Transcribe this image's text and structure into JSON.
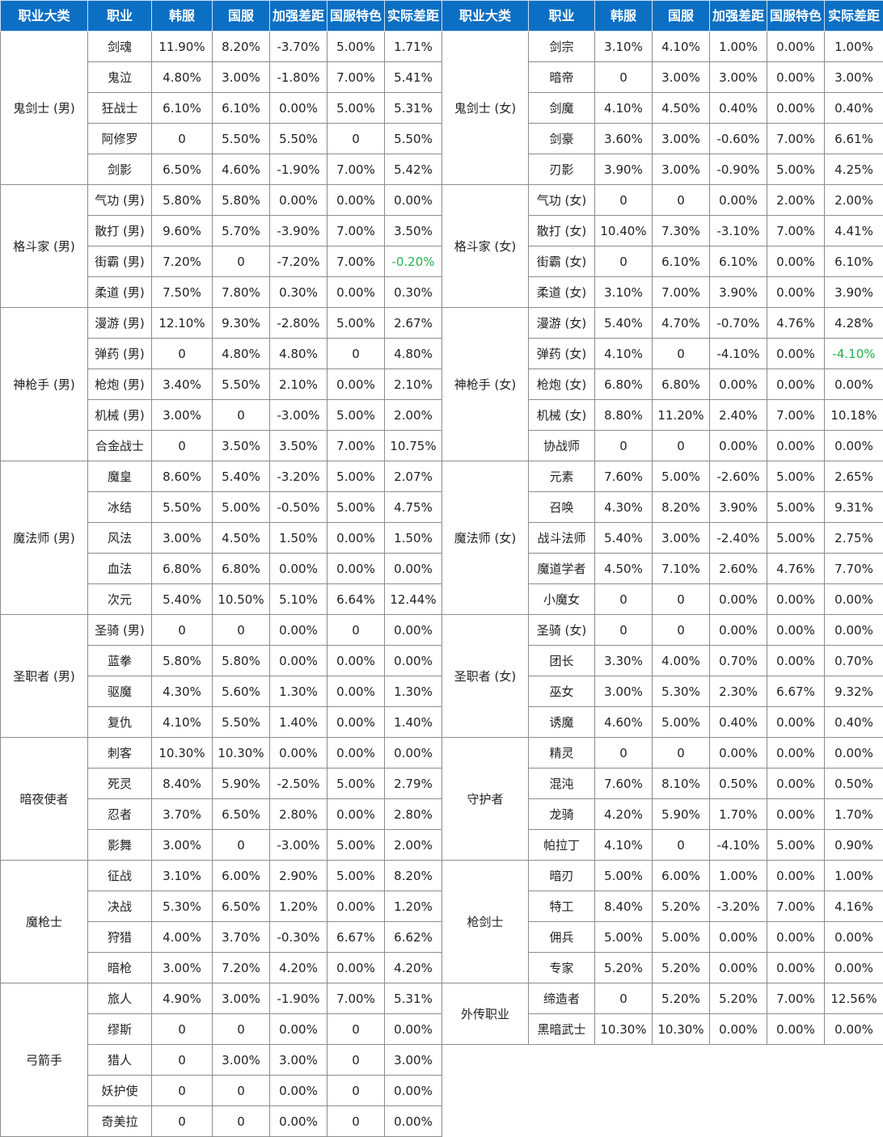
{
  "header": [
    "职业大类",
    "职业",
    "韩服",
    "国服",
    "加强差距",
    "国服特色",
    "实际差距"
  ],
  "left": [
    {
      "name": "鬼剑士 (男)",
      "rows": [
        [
          "剑魂",
          "11.90%",
          "8.20%",
          "-3.70%",
          "5.00%",
          "1.71%"
        ],
        [
          "鬼泣",
          "4.80%",
          "3.00%",
          "-1.80%",
          "7.00%",
          "5.41%"
        ],
        [
          "狂战士",
          "6.10%",
          "6.10%",
          "0.00%",
          "5.00%",
          "5.31%"
        ],
        [
          "阿修罗",
          "0",
          "5.50%",
          "5.50%",
          "0",
          "5.50%"
        ],
        [
          "剑影",
          "6.50%",
          "4.60%",
          "-1.90%",
          "7.00%",
          "5.42%"
        ]
      ]
    },
    {
      "name": "格斗家 (男)",
      "rows": [
        [
          "气功 (男)",
          "5.80%",
          "5.80%",
          "0.00%",
          "0.00%",
          "0.00%"
        ],
        [
          "散打 (男)",
          "9.60%",
          "5.70%",
          "-3.90%",
          "7.00%",
          "3.50%"
        ],
        [
          "街霸 (男)",
          "7.20%",
          "0",
          "-7.20%",
          "7.00%",
          "-0.20%"
        ],
        [
          "柔道 (男)",
          "7.50%",
          "7.80%",
          "0.30%",
          "0.00%",
          "0.30%"
        ]
      ]
    },
    {
      "name": "神枪手 (男)",
      "rows": [
        [
          "漫游 (男)",
          "12.10%",
          "9.30%",
          "-2.80%",
          "5.00%",
          "2.67%"
        ],
        [
          "弹药 (男)",
          "0",
          "4.80%",
          "4.80%",
          "0",
          "4.80%"
        ],
        [
          "枪炮 (男)",
          "3.40%",
          "5.50%",
          "2.10%",
          "0.00%",
          "2.10%"
        ],
        [
          "机械 (男)",
          "3.00%",
          "0",
          "-3.00%",
          "5.00%",
          "2.00%"
        ],
        [
          "合金战士",
          "0",
          "3.50%",
          "3.50%",
          "7.00%",
          "10.75%"
        ]
      ]
    },
    {
      "name": "魔法师 (男)",
      "rows": [
        [
          "魔皇",
          "8.60%",
          "5.40%",
          "-3.20%",
          "5.00%",
          "2.07%"
        ],
        [
          "冰结",
          "5.50%",
          "5.00%",
          "-0.50%",
          "5.00%",
          "4.75%"
        ],
        [
          "风法",
          "3.00%",
          "4.50%",
          "1.50%",
          "0.00%",
          "1.50%"
        ],
        [
          "血法",
          "6.80%",
          "6.80%",
          "0.00%",
          "0.00%",
          "0.00%"
        ],
        [
          "次元",
          "5.40%",
          "10.50%",
          "5.10%",
          "6.64%",
          "12.44%"
        ]
      ]
    },
    {
      "name": "圣职者 (男)",
      "rows": [
        [
          "圣骑 (男)",
          "0",
          "0",
          "0.00%",
          "0",
          "0.00%"
        ],
        [
          "蓝拳",
          "5.80%",
          "5.80%",
          "0.00%",
          "0.00%",
          "0.00%"
        ],
        [
          "驱魔",
          "4.30%",
          "5.60%",
          "1.30%",
          "0.00%",
          "1.30%"
        ],
        [
          "复仇",
          "4.10%",
          "5.50%",
          "1.40%",
          "0.00%",
          "1.40%"
        ]
      ]
    },
    {
      "name": "暗夜使者",
      "rows": [
        [
          "刺客",
          "10.30%",
          "10.30%",
          "0.00%",
          "0.00%",
          "0.00%"
        ],
        [
          "死灵",
          "8.40%",
          "5.90%",
          "-2.50%",
          "5.00%",
          "2.79%"
        ],
        [
          "忍者",
          "3.70%",
          "6.50%",
          "2.80%",
          "0.00%",
          "2.80%"
        ],
        [
          "影舞",
          "3.00%",
          "0",
          "-3.00%",
          "5.00%",
          "2.00%"
        ]
      ]
    },
    {
      "name": "魔枪士",
      "rows": [
        [
          "征战",
          "3.10%",
          "6.00%",
          "2.90%",
          "5.00%",
          "8.20%"
        ],
        [
          "决战",
          "5.30%",
          "6.50%",
          "1.20%",
          "0.00%",
          "1.20%"
        ],
        [
          "狩猎",
          "4.00%",
          "3.70%",
          "-0.30%",
          "6.67%",
          "6.62%"
        ],
        [
          "暗枪",
          "3.00%",
          "7.20%",
          "4.20%",
          "0.00%",
          "4.20%"
        ]
      ]
    },
    {
      "name": "弓箭手",
      "rows": [
        [
          "旅人",
          "4.90%",
          "3.00%",
          "-1.90%",
          "7.00%",
          "5.31%"
        ],
        [
          "缪斯",
          "0",
          "0",
          "0.00%",
          "0",
          "0.00%"
        ],
        [
          "猎人",
          "0",
          "3.00%",
          "3.00%",
          "0",
          "3.00%"
        ],
        [
          "妖护使",
          "0",
          "0",
          "0.00%",
          "0",
          "0.00%"
        ],
        [
          "奇美拉",
          "0",
          "0",
          "0.00%",
          "0",
          "0.00%"
        ]
      ]
    }
  ],
  "right": [
    {
      "name": "鬼剑士 (女)",
      "rows": [
        [
          "剑宗",
          "3.10%",
          "4.10%",
          "1.00%",
          "0.00%",
          "1.00%"
        ],
        [
          "暗帝",
          "0",
          "3.00%",
          "3.00%",
          "0.00%",
          "3.00%"
        ],
        [
          "剑魔",
          "4.10%",
          "4.50%",
          "0.40%",
          "0.00%",
          "0.40%"
        ],
        [
          "剑豪",
          "3.60%",
          "3.00%",
          "-0.60%",
          "7.00%",
          "6.61%"
        ],
        [
          "刃影",
          "3.90%",
          "3.00%",
          "-0.90%",
          "5.00%",
          "4.25%"
        ]
      ]
    },
    {
      "name": "格斗家 (女)",
      "rows": [
        [
          "气功 (女)",
          "0",
          "0",
          "0.00%",
          "2.00%",
          "2.00%"
        ],
        [
          "散打 (女)",
          "10.40%",
          "7.30%",
          "-3.10%",
          "7.00%",
          "4.41%"
        ],
        [
          "街霸 (女)",
          "0",
          "6.10%",
          "6.10%",
          "0.00%",
          "6.10%"
        ],
        [
          "柔道 (女)",
          "3.10%",
          "7.00%",
          "3.90%",
          "0.00%",
          "3.90%"
        ]
      ]
    },
    {
      "name": "神枪手 (女)",
      "rows": [
        [
          "漫游 (女)",
          "5.40%",
          "4.70%",
          "-0.70%",
          "4.76%",
          "4.28%"
        ],
        [
          "弹药 (女)",
          "4.10%",
          "0",
          "-4.10%",
          "0.00%",
          "-4.10%"
        ],
        [
          "枪炮 (女)",
          "6.80%",
          "6.80%",
          "0.00%",
          "0.00%",
          "0.00%"
        ],
        [
          "机械 (女)",
          "8.80%",
          "11.20%",
          "2.40%",
          "7.00%",
          "10.18%"
        ],
        [
          "协战师",
          "0",
          "0",
          "0.00%",
          "0.00%",
          "0.00%"
        ]
      ]
    },
    {
      "name": "魔法师 (女)",
      "rows": [
        [
          "元素",
          "7.60%",
          "5.00%",
          "-2.60%",
          "5.00%",
          "2.65%"
        ],
        [
          "召唤",
          "4.30%",
          "8.20%",
          "3.90%",
          "5.00%",
          "9.31%"
        ],
        [
          "战斗法师",
          "5.40%",
          "3.00%",
          "-2.40%",
          "5.00%",
          "2.75%"
        ],
        [
          "魔道学者",
          "4.50%",
          "7.10%",
          "2.60%",
          "4.76%",
          "7.70%"
        ],
        [
          "小魔女",
          "0",
          "0",
          "0.00%",
          "0.00%",
          "0.00%"
        ]
      ]
    },
    {
      "name": "圣职者 (女)",
      "rows": [
        [
          "圣骑 (女)",
          "0",
          "0",
          "0.00%",
          "0.00%",
          "0.00%"
        ],
        [
          "团长",
          "3.30%",
          "4.00%",
          "0.70%",
          "0.00%",
          "0.70%"
        ],
        [
          "巫女",
          "3.00%",
          "5.30%",
          "2.30%",
          "6.67%",
          "9.32%"
        ],
        [
          "诱魔",
          "4.60%",
          "5.00%",
          "0.40%",
          "0.00%",
          "0.40%"
        ]
      ]
    },
    {
      "name": "守护者",
      "rows": [
        [
          "精灵",
          "0",
          "0",
          "0.00%",
          "0.00%",
          "0.00%"
        ],
        [
          "混沌",
          "7.60%",
          "8.10%",
          "0.50%",
          "0.00%",
          "0.50%"
        ],
        [
          "龙骑",
          "4.20%",
          "5.90%",
          "1.70%",
          "0.00%",
          "1.70%"
        ],
        [
          "帕拉丁",
          "4.10%",
          "0",
          "-4.10%",
          "5.00%",
          "0.90%"
        ]
      ]
    },
    {
      "name": "枪剑士",
      "rows": [
        [
          "暗刃",
          "5.00%",
          "6.00%",
          "1.00%",
          "0.00%",
          "1.00%"
        ],
        [
          "特工",
          "8.40%",
          "5.20%",
          "-3.20%",
          "7.00%",
          "4.16%"
        ],
        [
          "佣兵",
          "5.00%",
          "5.00%",
          "0.00%",
          "0.00%",
          "0.00%"
        ],
        [
          "专家",
          "5.20%",
          "5.20%",
          "0.00%",
          "0.00%",
          "0.00%"
        ]
      ]
    },
    {
      "name": "外传职业",
      "rows": [
        [
          "缔造者",
          "0",
          "5.20%",
          "5.20%",
          "7.00%",
          "12.56%"
        ],
        [
          "黑暗武士",
          "10.30%",
          "10.30%",
          "0.00%",
          "0.00%",
          "0.00%"
        ]
      ]
    }
  ]
}
